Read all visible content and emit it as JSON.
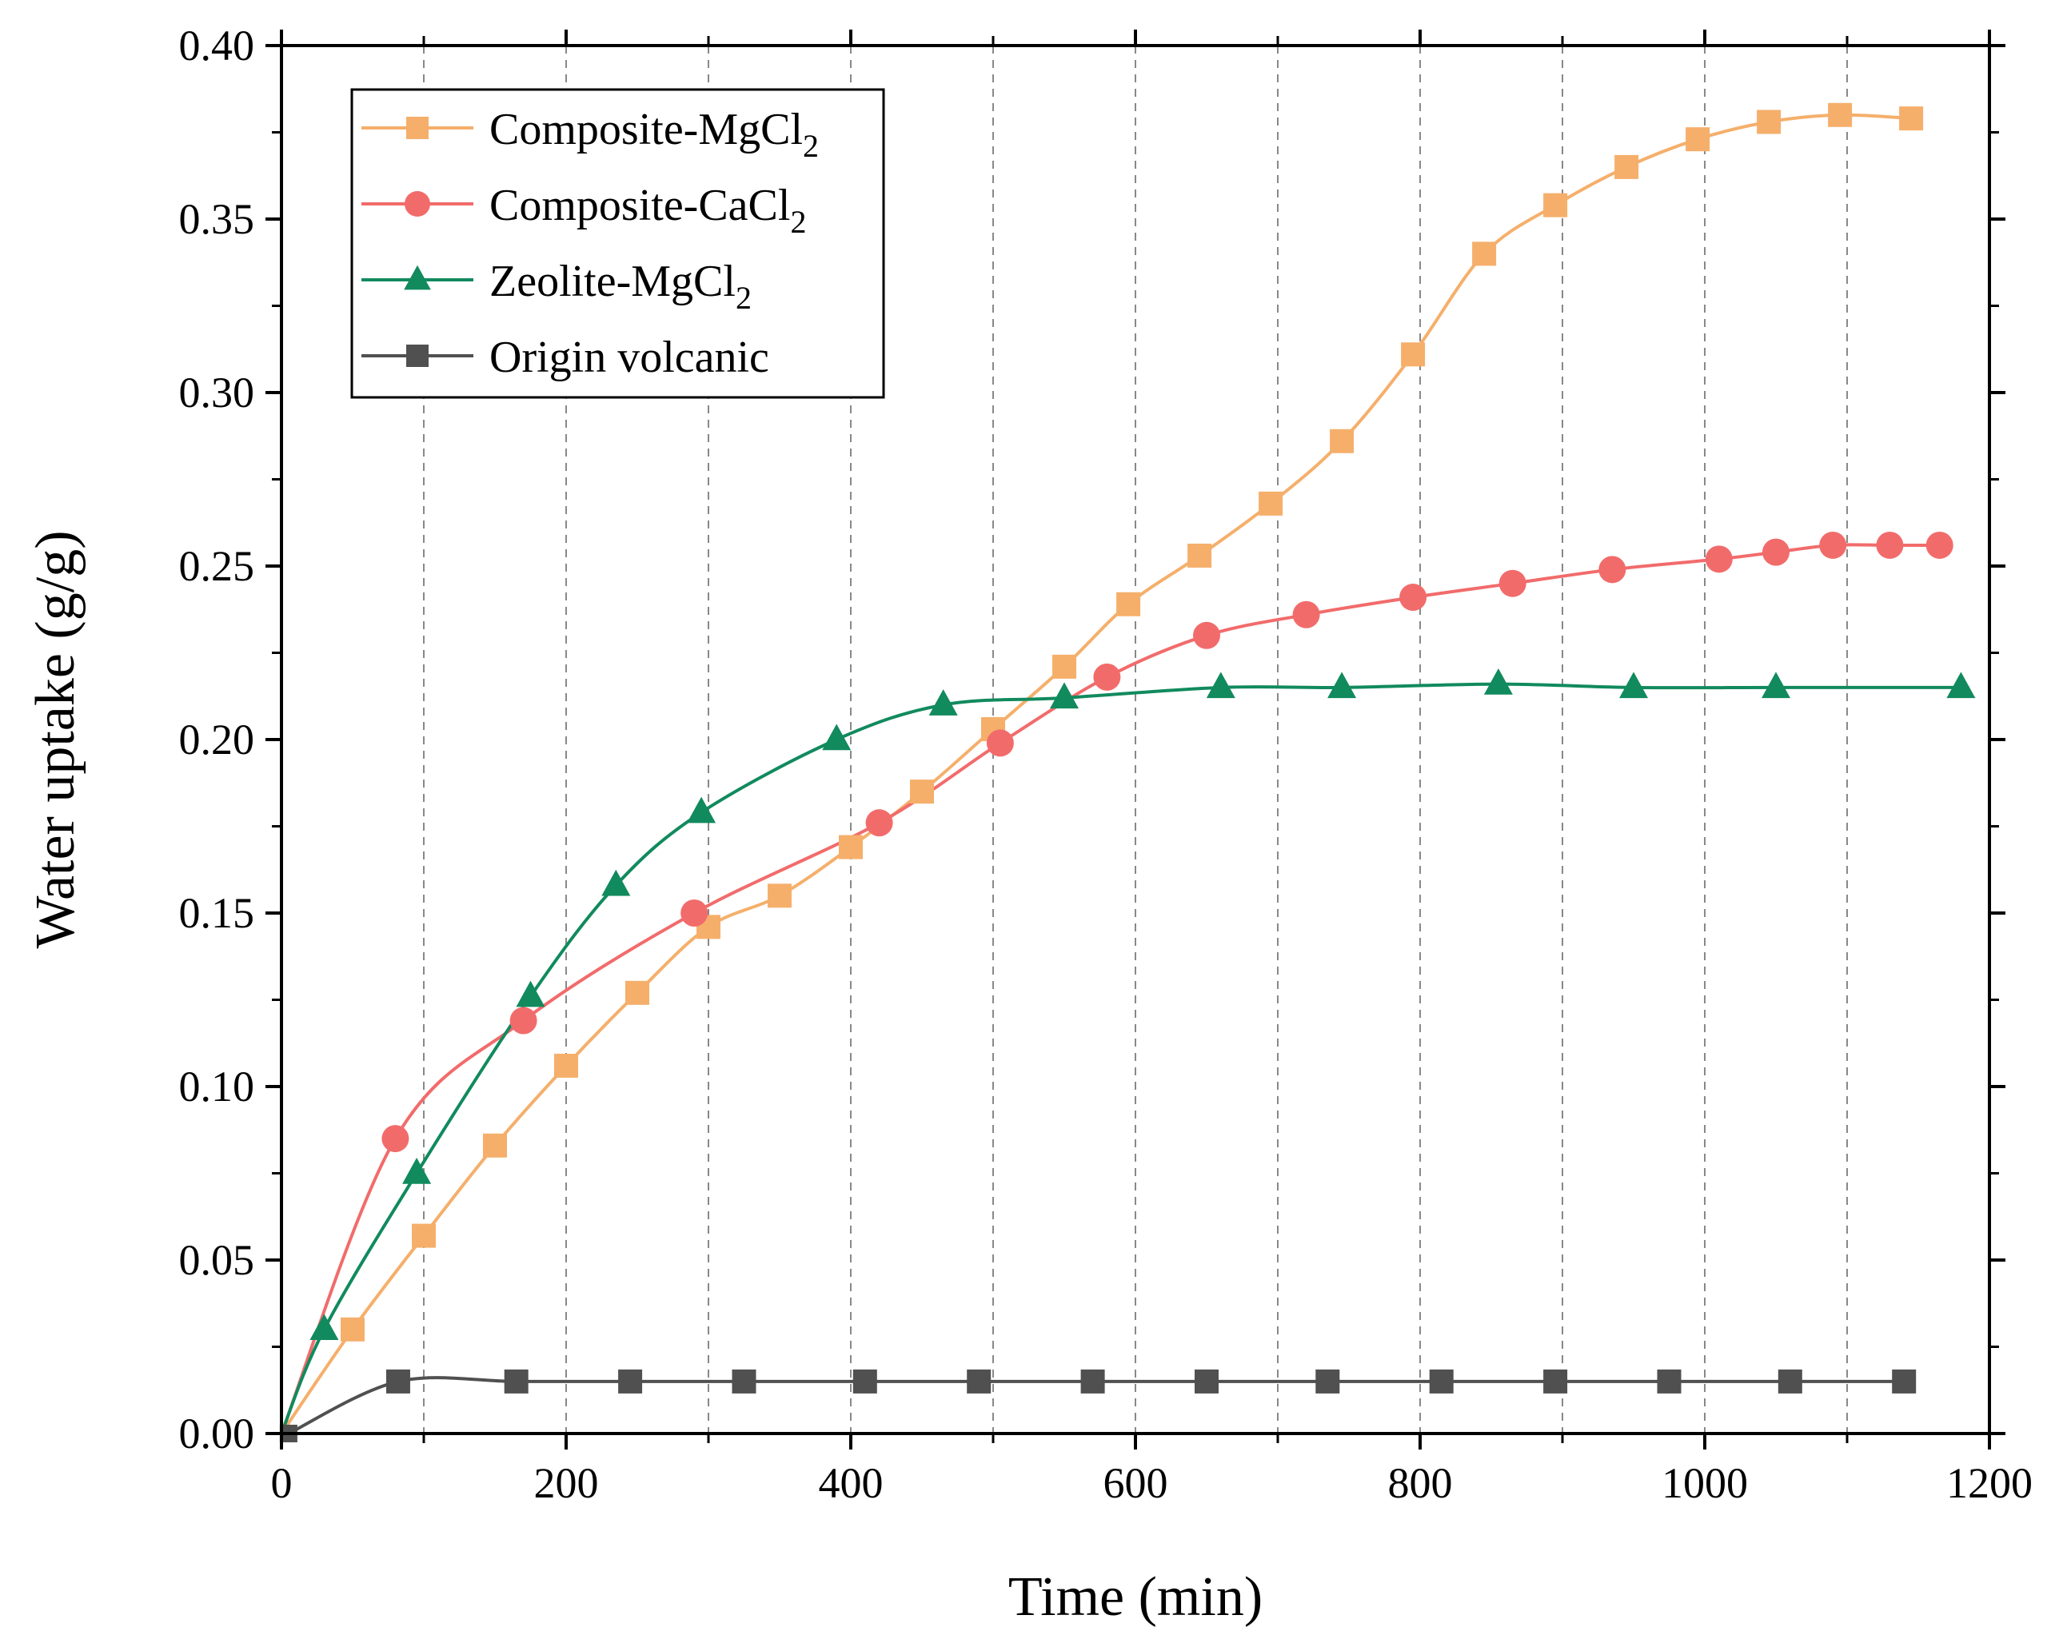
{
  "chart_data": {
    "type": "line",
    "xlabel": "Time (min)",
    "ylabel": "Water uptake (g/g)",
    "xlim": [
      0,
      1200
    ],
    "ylim": [
      0,
      0.4
    ],
    "xticks": [
      0,
      200,
      400,
      600,
      800,
      1000,
      1200
    ],
    "yticks": [
      0.0,
      0.05,
      0.1,
      0.15,
      0.2,
      0.25,
      0.3,
      0.35,
      0.4
    ],
    "xtick_labels": [
      "0",
      "200",
      "400",
      "600",
      "800",
      "1000",
      "1200"
    ],
    "ytick_labels": [
      "0.00",
      "0.05",
      "0.10",
      "0.15",
      "0.20",
      "0.25",
      "0.30",
      "0.35",
      "0.40"
    ],
    "vgrid": [
      100,
      200,
      300,
      400,
      500,
      600,
      700,
      800,
      900,
      1000,
      1100
    ],
    "legend_position": "top-left",
    "series": [
      {
        "key": "mgcl2",
        "name_main": "Composite-MgCl",
        "name_sub": "2",
        "color": "#F5AF6B",
        "marker": "square",
        "x": [
          0,
          50,
          100,
          150,
          200,
          250,
          300,
          350,
          400,
          450,
          500,
          550,
          595,
          645,
          695,
          745,
          795,
          845,
          895,
          945,
          995,
          1045,
          1095,
          1145
        ],
        "y": [
          0.0,
          0.03,
          0.057,
          0.083,
          0.106,
          0.127,
          0.146,
          0.155,
          0.169,
          0.185,
          0.203,
          0.221,
          0.239,
          0.253,
          0.268,
          0.286,
          0.311,
          0.34,
          0.354,
          0.365,
          0.373,
          0.378,
          0.38,
          0.379
        ]
      },
      {
        "key": "cacl2",
        "name_main": "Composite-CaCl",
        "name_sub": "2",
        "color": "#F26B6B",
        "marker": "circle",
        "x": [
          0,
          80,
          170,
          290,
          420,
          505,
          580,
          650,
          720,
          795,
          865,
          935,
          1010,
          1050,
          1090,
          1130,
          1165
        ],
        "y": [
          0.0,
          0.085,
          0.119,
          0.15,
          0.176,
          0.199,
          0.218,
          0.23,
          0.236,
          0.241,
          0.245,
          0.249,
          0.252,
          0.254,
          0.256,
          0.256,
          0.256
        ]
      },
      {
        "key": "zeolite",
        "name_main": "Zeolite-MgCl",
        "name_sub": "2",
        "color": "#118A5E",
        "marker": "triangle",
        "x": [
          0,
          30,
          95,
          175,
          235,
          295,
          390,
          465,
          550,
          660,
          745,
          855,
          950,
          1050,
          1180
        ],
        "y": [
          0.0,
          0.03,
          0.075,
          0.126,
          0.158,
          0.179,
          0.2,
          0.21,
          0.212,
          0.215,
          0.215,
          0.216,
          0.215,
          0.215,
          0.215
        ]
      },
      {
        "key": "origin",
        "name_main": "Origin volcanic",
        "name_sub": "",
        "color": "#505050",
        "marker": "square",
        "x": [
          5,
          82,
          165,
          245,
          325,
          410,
          490,
          570,
          650,
          735,
          815,
          895,
          975,
          1060,
          1140
        ],
        "y": [
          0.0,
          0.015,
          0.015,
          0.015,
          0.015,
          0.015,
          0.015,
          0.015,
          0.015,
          0.015,
          0.015,
          0.015,
          0.015,
          0.015,
          0.015
        ]
      }
    ]
  }
}
